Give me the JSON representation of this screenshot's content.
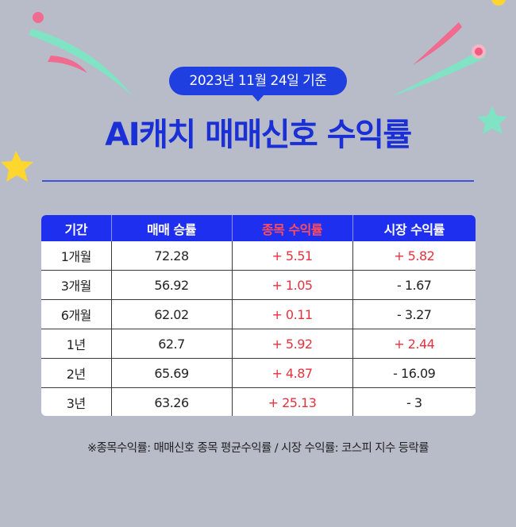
{
  "badge": {
    "date_text": "2023년 11월 24일 기준"
  },
  "title": "AI캐치 매매신호 수익률",
  "table": {
    "headers": [
      "기간",
      "매매 승률",
      "종목 수익률",
      "시장 수익률"
    ],
    "rows": [
      {
        "period": "1개월",
        "win_rate": "72.28",
        "stock_return": "+ 5.51",
        "market_return": "+ 5.82",
        "market_positive": true
      },
      {
        "period": "3개월",
        "win_rate": "56.92",
        "stock_return": "+ 1.05",
        "market_return": "- 1.67",
        "market_positive": false
      },
      {
        "period": "6개월",
        "win_rate": "62.02",
        "stock_return": "+ 0.11",
        "market_return": "- 3.27",
        "market_positive": false
      },
      {
        "period": "1년",
        "win_rate": "62.7",
        "stock_return": "+ 5.92",
        "market_return": "+ 2.44",
        "market_positive": true
      },
      {
        "period": "2년",
        "win_rate": "65.69",
        "stock_return": "+ 4.87",
        "market_return": "- 16.09",
        "market_positive": false
      },
      {
        "period": "3년",
        "win_rate": "63.26",
        "stock_return": "+ 25.13",
        "market_return": "- 3",
        "market_positive": false
      }
    ]
  },
  "footnote": "※종목수익률: 매매신호 종목 평균수익률 / 시장 수익률: 코스피 지수 등락률",
  "colors": {
    "background": "#b8bcc9",
    "brand_blue": "#1f3fe0",
    "header_blue": "#1f2ff0",
    "positive_red": "#e6323f",
    "decor_pink": "#f06b8f",
    "decor_mint": "#7fe3c4",
    "decor_yellow": "#ffd62e"
  }
}
